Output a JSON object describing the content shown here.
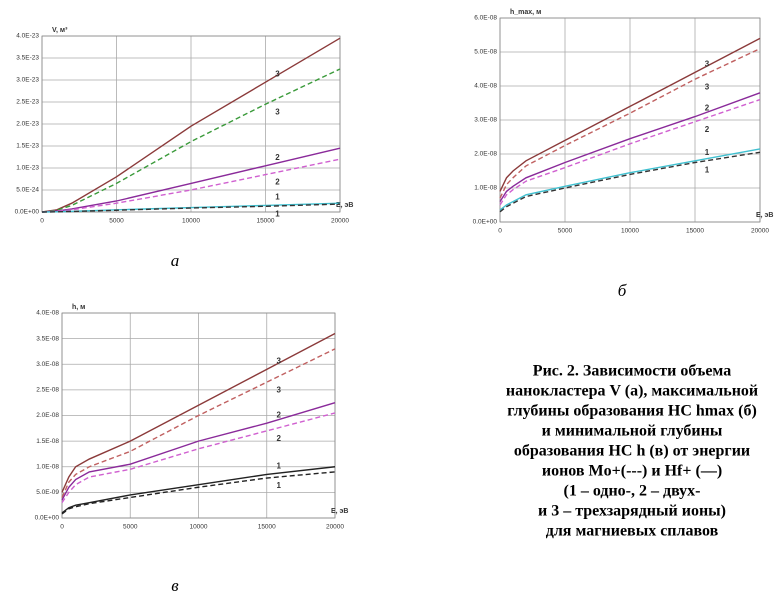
{
  "chart_data": [
    {
      "type": "line",
      "ylabel": "V, м³",
      "xlabel": "E, эВ",
      "panel_label": "а",
      "x": [
        0,
        1000,
        2000,
        5000,
        10000,
        15000,
        20000
      ],
      "xlim": [
        0,
        20000
      ],
      "xticks": [
        0,
        5000,
        10000,
        15000,
        20000
      ],
      "ylim": [
        0,
        4e-23
      ],
      "yticks": [
        {
          "value": 0,
          "label": "0.0E+00"
        },
        {
          "value": 5e-24,
          "label": "5.0E-24"
        },
        {
          "value": 1e-23,
          "label": "1.0E-23"
        },
        {
          "value": 1.5e-23,
          "label": "1.5E-23"
        },
        {
          "value": 2e-23,
          "label": "2.0E-23"
        },
        {
          "value": 2.5e-23,
          "label": "2.5E-23"
        },
        {
          "value": 3e-23,
          "label": "3.0E-23"
        },
        {
          "value": 3.5e-23,
          "label": "3.5E-23"
        },
        {
          "value": 4e-23,
          "label": "4.0E-23"
        }
      ],
      "grid": true,
      "series": [
        {
          "name": "3",
          "color": "#8b3a3a",
          "dashed": false,
          "values": [
            0,
            5e-25,
            2e-24,
            8e-24,
            1.95e-23,
            2.95e-23,
            3.95e-23
          ]
        },
        {
          "name": "3",
          "color": "#3a9a3a",
          "dashed": true,
          "values": [
            0,
            4e-25,
            1.5e-24,
            6.5e-24,
            1.6e-23,
            2.45e-23,
            3.25e-23
          ]
        },
        {
          "name": "2",
          "color": "#8a2a9a",
          "dashed": false,
          "values": [
            0,
            2e-25,
            7e-25,
            2.5e-24,
            6.5e-24,
            1.05e-23,
            1.45e-23
          ]
        },
        {
          "name": "2",
          "color": "#d060d0",
          "dashed": true,
          "values": [
            0,
            1.5e-25,
            5e-25,
            2e-24,
            5e-24,
            8.5e-24,
            1.2e-23
          ]
        },
        {
          "name": "1",
          "color": "#40c0d0",
          "dashed": false,
          "values": [
            0,
            5e-26,
            1.5e-25,
            5e-25,
            1e-24,
            1.5e-24,
            2e-24
          ]
        },
        {
          "name": "1",
          "color": "#333333",
          "dashed": true,
          "values": [
            0,
            4e-26,
            1.2e-25,
            4e-25,
            9e-25,
            1.3e-24,
            1.8e-24
          ]
        }
      ]
    },
    {
      "type": "line",
      "ylabel": "h_max, м",
      "xlabel": "E, эВ",
      "panel_label": "б",
      "x": [
        0,
        500,
        1000,
        2000,
        5000,
        10000,
        15000,
        20000
      ],
      "xlim": [
        0,
        20000
      ],
      "xticks": [
        0,
        5000,
        10000,
        15000,
        20000
      ],
      "ylim": [
        0,
        6e-08
      ],
      "yticks": [
        {
          "value": 0,
          "label": "0.0E+00"
        },
        {
          "value": 1e-08,
          "label": "1.0E-08"
        },
        {
          "value": 2e-08,
          "label": "2.0E-08"
        },
        {
          "value": 3e-08,
          "label": "3.0E-08"
        },
        {
          "value": 4e-08,
          "label": "4.0E-08"
        },
        {
          "value": 5e-08,
          "label": "5.0E-08"
        },
        {
          "value": 6e-08,
          "label": "6.0E-08"
        }
      ],
      "grid": true,
      "series": [
        {
          "name": "3",
          "color": "#8b3a3a",
          "dashed": false,
          "values": [
            9e-09,
            1.3e-08,
            1.5e-08,
            1.8e-08,
            2.4e-08,
            3.4e-08,
            4.4e-08,
            5.4e-08
          ]
        },
        {
          "name": "3",
          "color": "#c06060",
          "dashed": true,
          "values": [
            7e-09,
            1.1e-08,
            1.3e-08,
            1.65e-08,
            2.25e-08,
            3.2e-08,
            4.2e-08,
            5.1e-08
          ]
        },
        {
          "name": "2",
          "color": "#8a2a9a",
          "dashed": false,
          "values": [
            6e-09,
            9e-09,
            1.05e-08,
            1.3e-08,
            1.75e-08,
            2.45e-08,
            3.1e-08,
            3.8e-08
          ]
        },
        {
          "name": "2",
          "color": "#d060d0",
          "dashed": true,
          "values": [
            5e-09,
            8e-09,
            9.5e-09,
            1.2e-08,
            1.6e-08,
            2.3e-08,
            2.95e-08,
            3.6e-08
          ]
        },
        {
          "name": "1",
          "color": "#40c0d0",
          "dashed": false,
          "values": [
            3.5e-09,
            5e-09,
            6e-09,
            8e-09,
            1.05e-08,
            1.45e-08,
            1.8e-08,
            2.15e-08
          ]
        },
        {
          "name": "1",
          "color": "#333333",
          "dashed": true,
          "values": [
            3e-09,
            4.5e-09,
            5.5e-09,
            7.5e-09,
            1e-08,
            1.4e-08,
            1.75e-08,
            2.05e-08
          ]
        }
      ]
    },
    {
      "type": "line",
      "ylabel": "h, м",
      "xlabel": "E, эВ",
      "panel_label": "в",
      "x": [
        0,
        500,
        1000,
        2000,
        5000,
        10000,
        15000,
        20000
      ],
      "xlim": [
        0,
        20000
      ],
      "xticks": [
        0,
        5000,
        10000,
        15000,
        20000
      ],
      "ylim": [
        0,
        4e-08
      ],
      "yticks": [
        {
          "value": 0,
          "label": "0.0E+00"
        },
        {
          "value": 5e-09,
          "label": "5.0E-09"
        },
        {
          "value": 1e-08,
          "label": "1.0E-08"
        },
        {
          "value": 1.5e-08,
          "label": "1.5E-08"
        },
        {
          "value": 2e-08,
          "label": "2.0E-08"
        },
        {
          "value": 2.5e-08,
          "label": "2.5E-08"
        },
        {
          "value": 3e-08,
          "label": "3.0E-08"
        },
        {
          "value": 3.5e-08,
          "label": "3.5E-08"
        },
        {
          "value": 4e-08,
          "label": "4.0E-08"
        }
      ],
      "grid": true,
      "series": [
        {
          "name": "3",
          "color": "#8b3a3a",
          "dashed": false,
          "values": [
            5e-09,
            8e-09,
            1e-08,
            1.15e-08,
            1.5e-08,
            2.2e-08,
            2.9e-08,
            3.6e-08
          ]
        },
        {
          "name": "3",
          "color": "#c06060",
          "dashed": true,
          "values": [
            4e-09,
            7e-09,
            8.5e-09,
            1e-08,
            1.3e-08,
            2e-08,
            2.65e-08,
            3.3e-08
          ]
        },
        {
          "name": "2",
          "color": "#8a2a9a",
          "dashed": false,
          "values": [
            3.5e-09,
            6e-09,
            7.5e-09,
            9e-09,
            1.05e-08,
            1.5e-08,
            1.85e-08,
            2.25e-08
          ]
        },
        {
          "name": "2",
          "color": "#d060d0",
          "dashed": true,
          "values": [
            3e-09,
            5e-09,
            6.5e-09,
            8e-09,
            9.5e-09,
            1.35e-08,
            1.7e-08,
            2.05e-08
          ]
        },
        {
          "name": "1",
          "color": "#222222",
          "dashed": false,
          "values": [
            1e-09,
            2e-09,
            2.5e-09,
            3e-09,
            4.5e-09,
            6.5e-09,
            8.5e-09,
            1e-08
          ]
        },
        {
          "name": "1",
          "color": "#222222",
          "dashed": true,
          "values": [
            8e-10,
            1.8e-09,
            2.2e-09,
            2.8e-09,
            4e-09,
            6e-09,
            7.8e-09,
            9e-09
          ]
        }
      ]
    }
  ],
  "caption": {
    "lines": [
      "Рис. 2. Зависимости объема",
      "нанокластера V (а), максимальной",
      "глубины образования НС hmax (б)",
      "и минимальной глубины",
      "образования НС h (в) от энергии",
      "ионов Mo+(---) и Hf+ (—)",
      "(1 – одно-, 2 – двух-",
      "и 3 – трехзарядный ионы)",
      "для магниевых сплавов"
    ]
  }
}
